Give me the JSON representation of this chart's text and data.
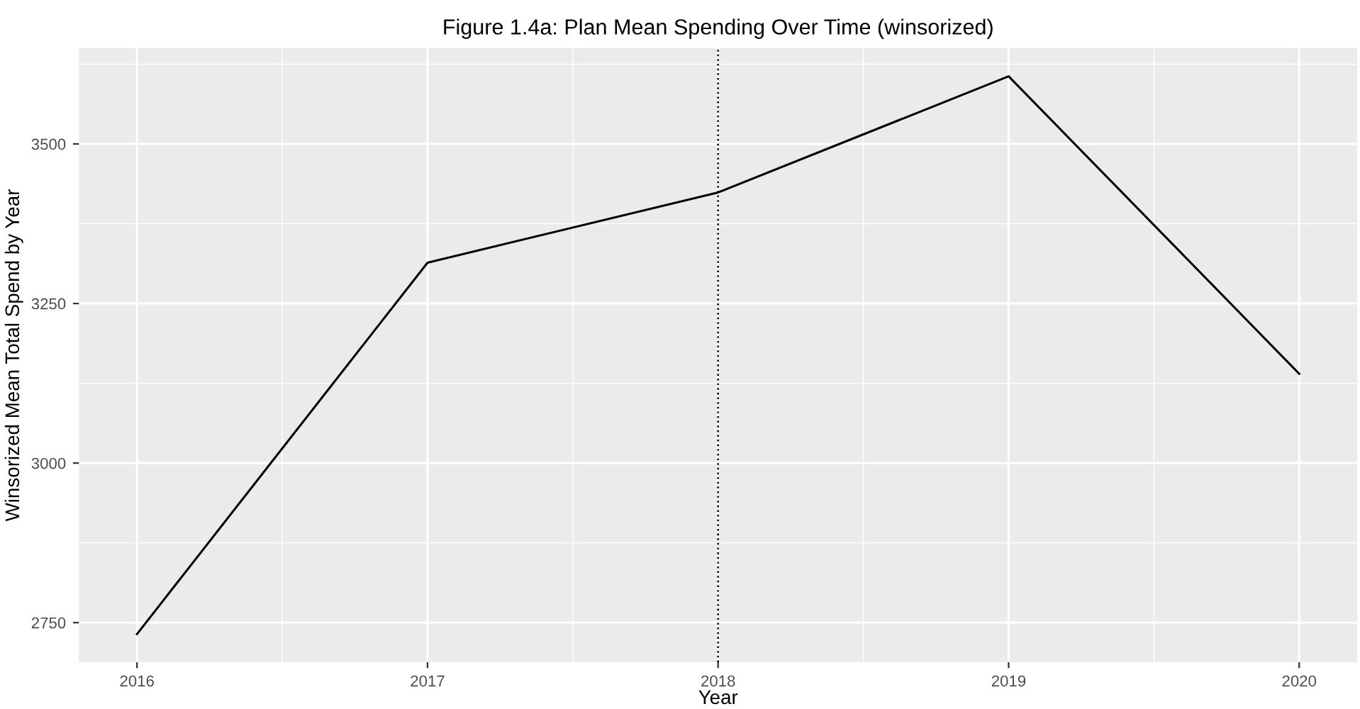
{
  "chart_data": {
    "type": "line",
    "title": "Figure 1.4a: Plan Mean Spending Over Time (winsorized)",
    "xlabel": "Year",
    "ylabel": "Winsorized Mean Total Spend by Year",
    "x": [
      2016,
      2017,
      2018,
      2019,
      2020
    ],
    "series": [
      {
        "color": "#000000",
        "values": [
          2732,
          3314,
          3424,
          3606,
          3140
        ]
      }
    ],
    "xlim": [
      2015.8,
      2020.2
    ],
    "xticks": [
      2016,
      2017,
      2018,
      2019,
      2020
    ],
    "ylim": [
      2688,
      3650
    ],
    "yticks": [
      2750,
      3000,
      3250,
      3500
    ],
    "ref_lines": [
      {
        "axis": "x",
        "value": 2018,
        "color": "#000000",
        "line_style": "dotted"
      }
    ],
    "grid": true,
    "marker": "none",
    "line_style": "solid"
  }
}
